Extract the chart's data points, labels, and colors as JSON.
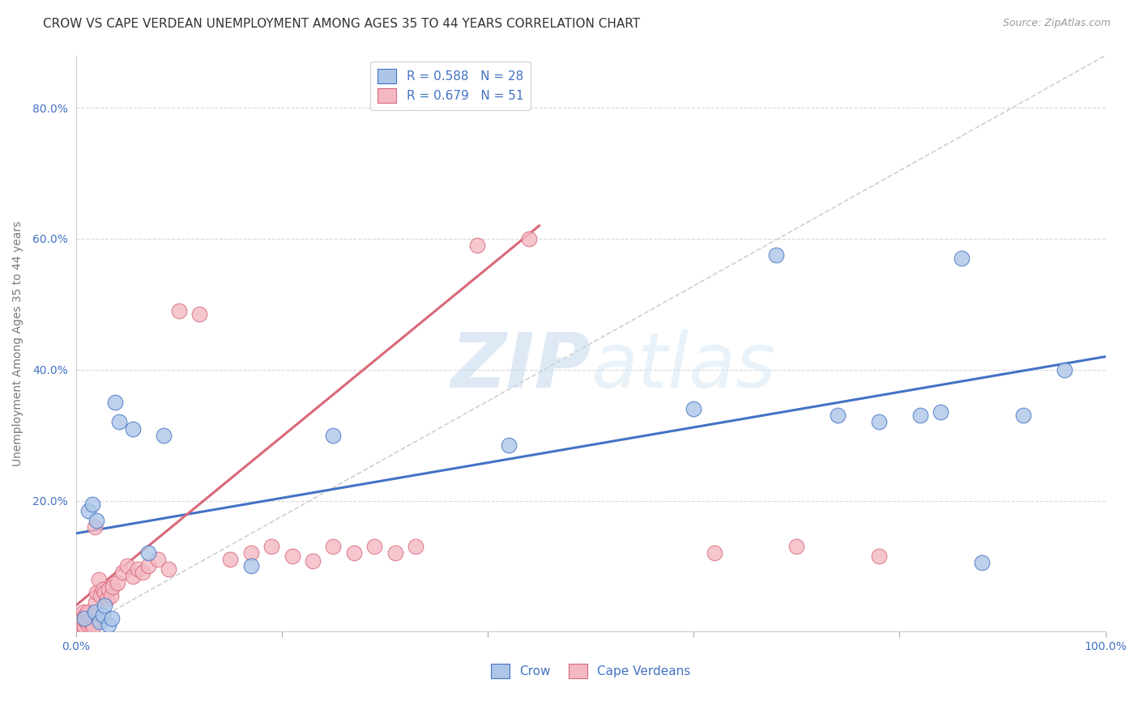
{
  "title": "CROW VS CAPE VERDEAN UNEMPLOYMENT AMONG AGES 35 TO 44 YEARS CORRELATION CHART",
  "source": "Source: ZipAtlas.com",
  "ylabel": "Unemployment Among Ages 35 to 44 years",
  "xlim": [
    0.0,
    1.0
  ],
  "ylim": [
    0.0,
    0.88
  ],
  "yticks": [
    0.2,
    0.4,
    0.6,
    0.8
  ],
  "ytick_labels": [
    "20.0%",
    "40.0%",
    "60.0%",
    "80.0%"
  ],
  "xticks": [
    0.0,
    0.2,
    0.4,
    0.6,
    0.8,
    1.0
  ],
  "xtick_labels": [
    "0.0%",
    "",
    "",
    "",
    "",
    "100.0%"
  ],
  "crow_R": "0.588",
  "crow_N": "28",
  "cape_R": "0.679",
  "cape_N": "51",
  "crow_color": "#adc6e8",
  "cape_color": "#f4b8c4",
  "crow_line_color": "#4472c4",
  "cape_line_color": "#d9687a",
  "diagonal_color": "#d0d0d0",
  "background_color": "#ffffff",
  "grid_color": "#d8d8d8",
  "crow_points_x": [
    0.008,
    0.012,
    0.016,
    0.018,
    0.02,
    0.023,
    0.026,
    0.028,
    0.032,
    0.035,
    0.038,
    0.042,
    0.055,
    0.07,
    0.085,
    0.17,
    0.25,
    0.42,
    0.6,
    0.68,
    0.74,
    0.78,
    0.82,
    0.84,
    0.86,
    0.88,
    0.92,
    0.96
  ],
  "crow_points_y": [
    0.02,
    0.185,
    0.195,
    0.03,
    0.17,
    0.015,
    0.025,
    0.04,
    0.01,
    0.02,
    0.35,
    0.32,
    0.31,
    0.12,
    0.3,
    0.1,
    0.3,
    0.285,
    0.34,
    0.575,
    0.33,
    0.32,
    0.33,
    0.335,
    0.57,
    0.105,
    0.33,
    0.4
  ],
  "cape_points_x": [
    0.003,
    0.004,
    0.005,
    0.006,
    0.007,
    0.008,
    0.009,
    0.01,
    0.011,
    0.012,
    0.013,
    0.015,
    0.016,
    0.017,
    0.018,
    0.019,
    0.02,
    0.022,
    0.024,
    0.026,
    0.028,
    0.03,
    0.032,
    0.034,
    0.036,
    0.04,
    0.045,
    0.05,
    0.055,
    0.06,
    0.065,
    0.07,
    0.08,
    0.09,
    0.1,
    0.12,
    0.15,
    0.17,
    0.19,
    0.21,
    0.23,
    0.25,
    0.27,
    0.29,
    0.31,
    0.33,
    0.39,
    0.44,
    0.62,
    0.7,
    0.78
  ],
  "cape_points_y": [
    0.015,
    0.008,
    0.012,
    0.02,
    0.03,
    0.008,
    0.025,
    0.015,
    0.03,
    0.01,
    0.018,
    0.012,
    0.022,
    0.008,
    0.16,
    0.045,
    0.06,
    0.08,
    0.055,
    0.065,
    0.06,
    0.05,
    0.065,
    0.055,
    0.068,
    0.075,
    0.09,
    0.1,
    0.085,
    0.095,
    0.09,
    0.1,
    0.11,
    0.095,
    0.49,
    0.485,
    0.11,
    0.12,
    0.13,
    0.115,
    0.108,
    0.13,
    0.12,
    0.13,
    0.12,
    0.13,
    0.59,
    0.6,
    0.12,
    0.13,
    0.115
  ],
  "crow_trend_x": [
    0.0,
    1.0
  ],
  "crow_trend_y": [
    0.15,
    0.42
  ],
  "cape_trend_x": [
    0.0,
    0.45
  ],
  "cape_trend_y": [
    0.04,
    0.62
  ],
  "title_fontsize": 11,
  "axis_label_fontsize": 10,
  "tick_fontsize": 10,
  "legend_fontsize": 11
}
